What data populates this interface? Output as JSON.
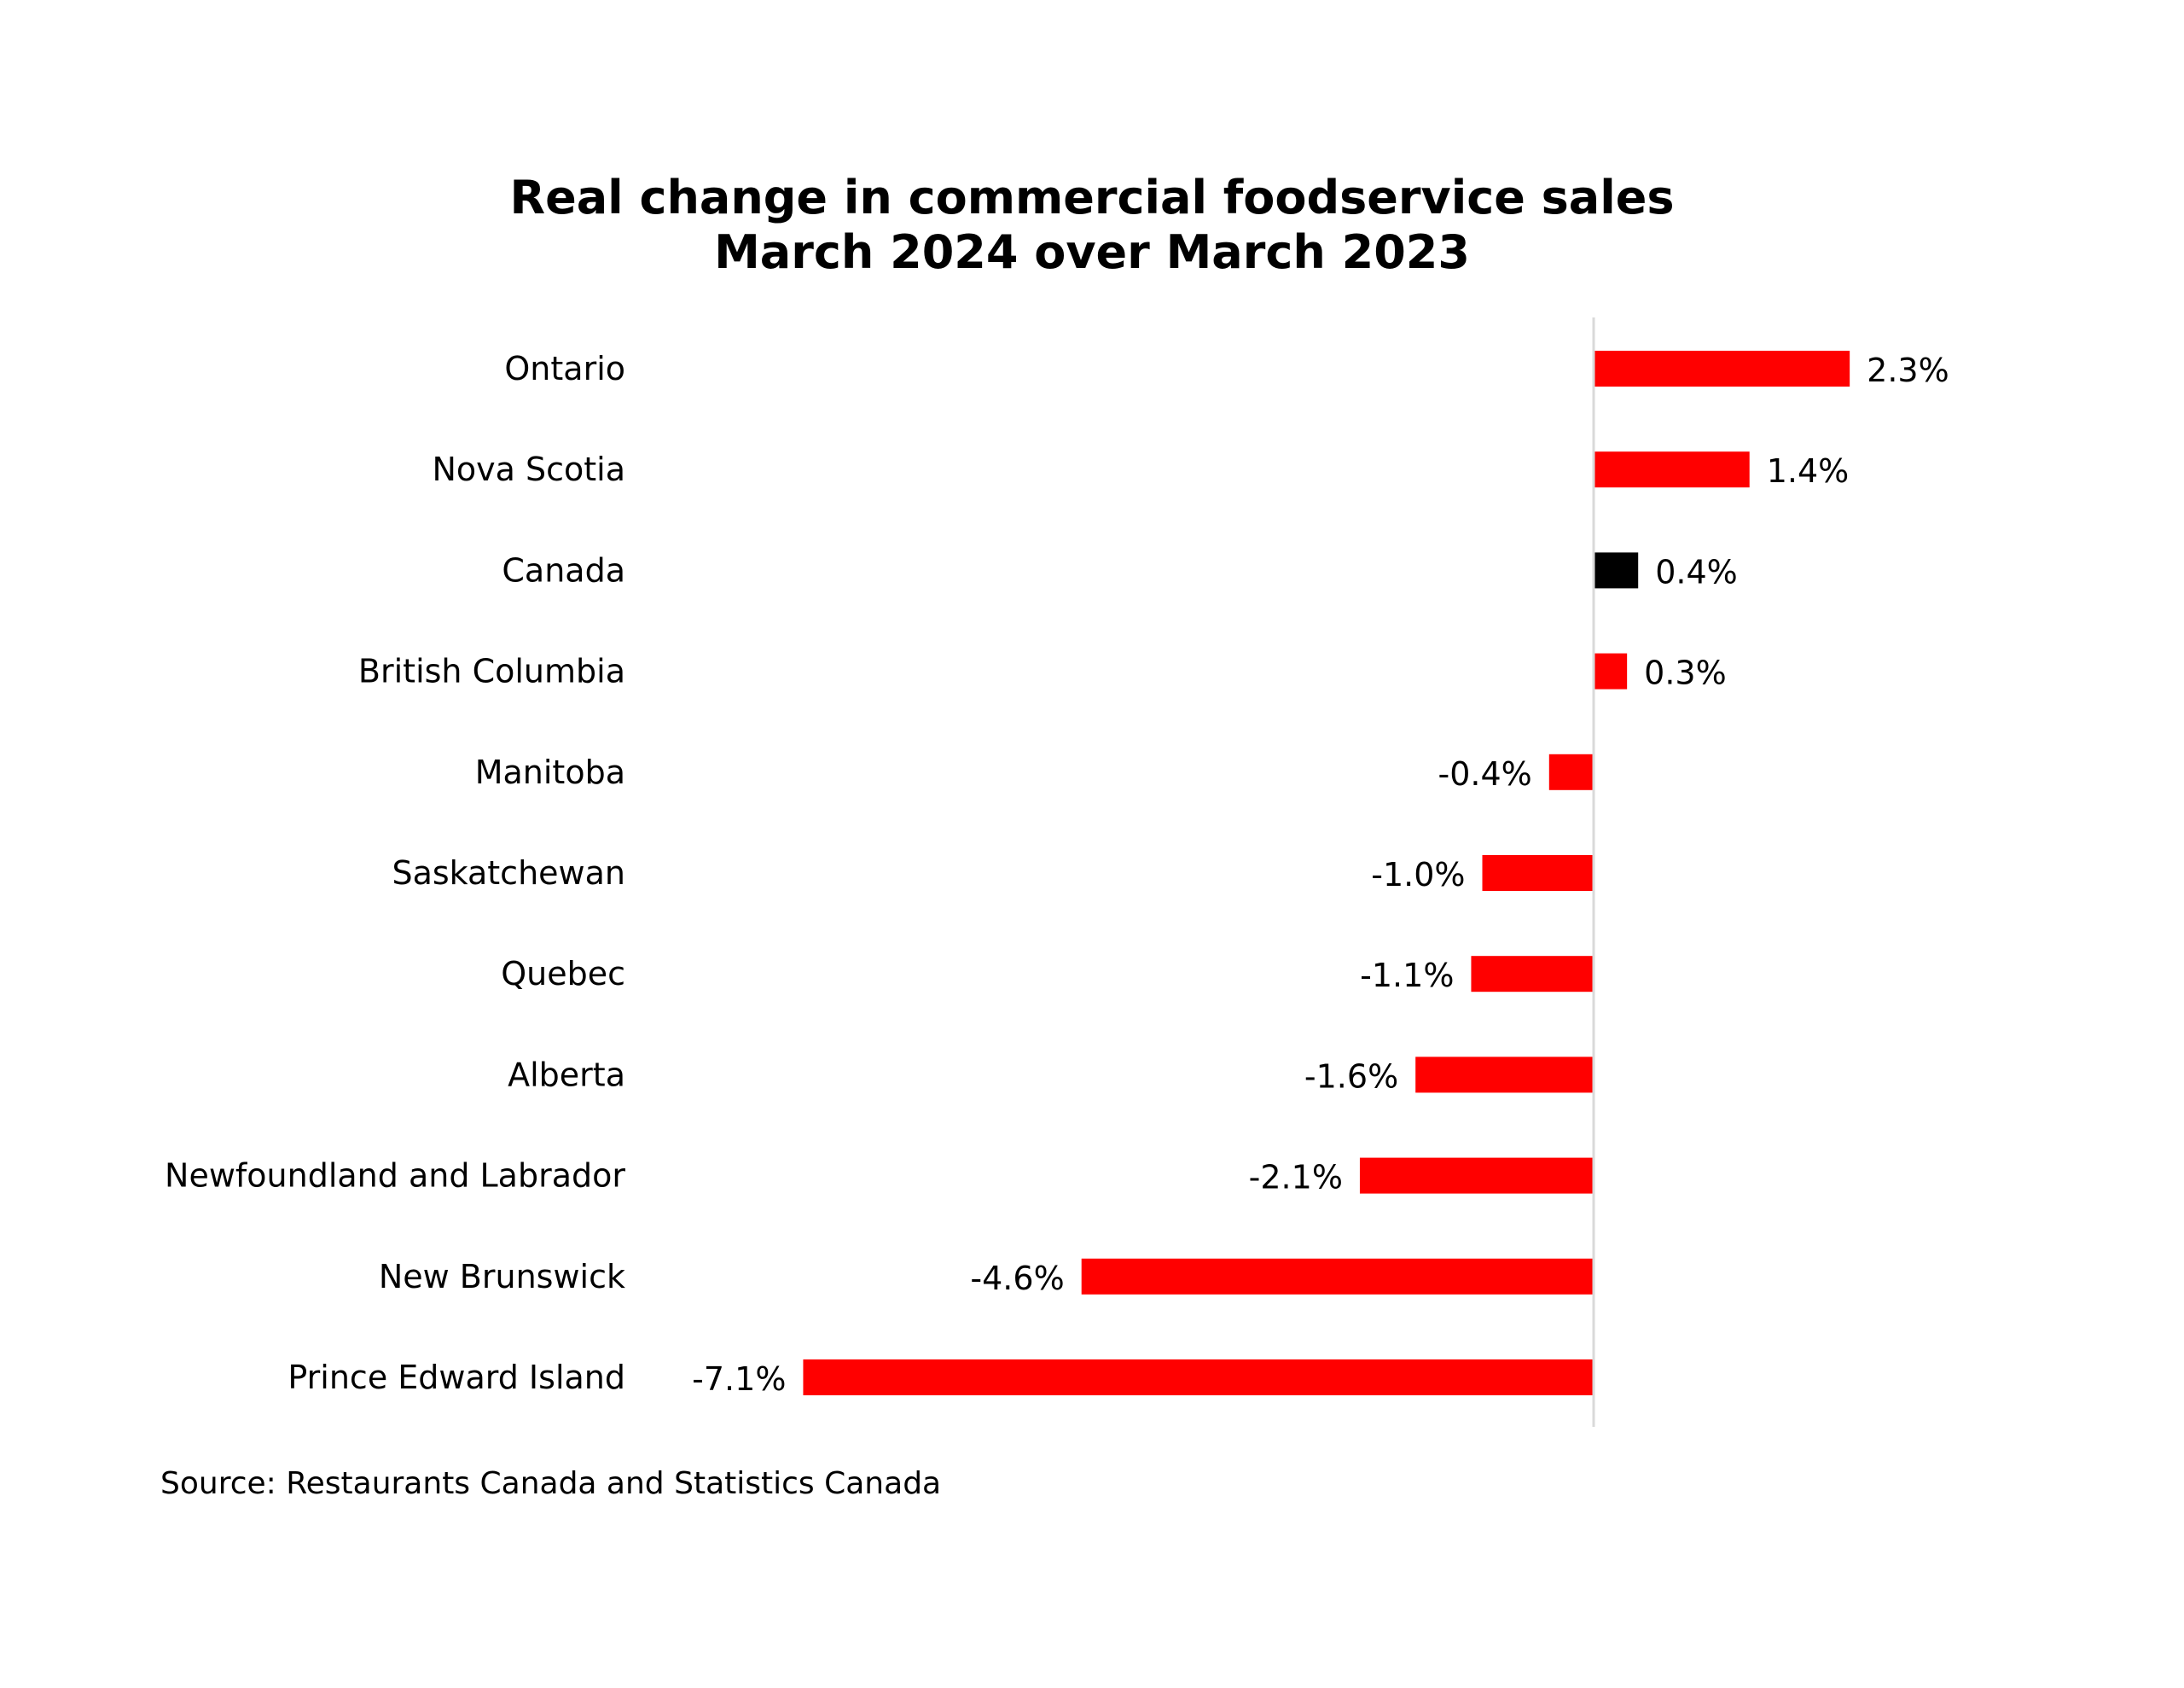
{
  "chart_data": {
    "type": "bar",
    "orientation": "horizontal",
    "title": "Real change in commercial foodservice sales",
    "subtitle": "March 2024 over March 2023",
    "categories": [
      "Ontario",
      "Nova Scotia",
      "Canada",
      "British Columbia",
      "Manitoba",
      "Saskatchewan",
      "Quebec",
      "Alberta",
      "Newfoundland and Labrador",
      "New Brunswick",
      "Prince Edward Island"
    ],
    "values": [
      2.3,
      1.4,
      0.4,
      0.3,
      -0.4,
      -1.0,
      -1.1,
      -1.6,
      -2.1,
      -4.6,
      -7.1
    ],
    "value_labels": [
      "2.3%",
      "1.4%",
      "0.4%",
      "0.3%",
      "-0.4%",
      "-1.0%",
      "-1.1%",
      "-1.6%",
      "-2.1%",
      "-4.6%",
      "-7.1%"
    ],
    "bar_colors": [
      "#ff0000",
      "#ff0000",
      "#000000",
      "#ff0000",
      "#ff0000",
      "#ff0000",
      "#ff0000",
      "#ff0000",
      "#ff0000",
      "#ff0000",
      "#ff0000"
    ],
    "xlim": [
      -7.1,
      2.3
    ],
    "xlabel": "",
    "ylabel": "",
    "grid": false,
    "legend": "none",
    "source": "Source: Restaurants Canada and Statistics Canada"
  },
  "colors": {
    "highlight": "#ff0000",
    "national": "#000000",
    "axis": "#d9d9d9",
    "background": "#ffffff"
  }
}
